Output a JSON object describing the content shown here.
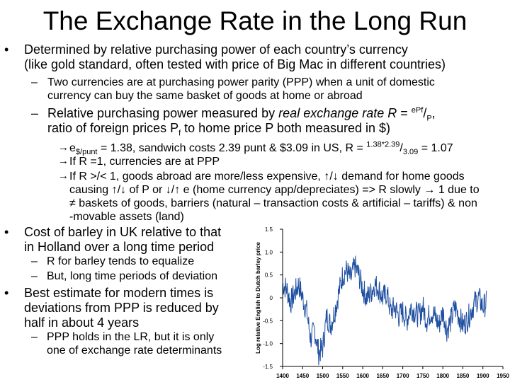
{
  "title": "The Exchange Rate in the Long Run",
  "bullets": [
    {
      "lines": [
        "Determined by relative purchasing power of each country’s currency",
        "(like gold standard, often tested with price of Big Mac in different countries)"
      ]
    }
  ],
  "sub1": {
    "lines": [
      "Two currencies are at purchasing power parity (PPP) when a unit of domestic",
      "currency can buy the same basket of goods at home or abroad"
    ]
  },
  "sub2": {
    "line1_pre": "Relative purchasing power measured by ",
    "line1_italic": "real exchange rate R",
    "line1_eq": " = ",
    "line1_sup": "ePf",
    "line1_slash": "/",
    "line1_sub": "P",
    "line1_end": ",",
    "line2": "ratio of foreign prices P",
    "line2_sub": "f",
    "line2_end": " to home price P both measured in $)"
  },
  "level3": [
    {
      "pre": "e",
      "sub": "$/punt",
      "mid": " = 1.38, sandwich costs 2.39 punt & $3.09 in US, R = ",
      "sup": "1.38*2.39",
      "slash": "/",
      "sub2": "3.09",
      "end": " = 1.07"
    },
    {
      "text": "If R =1, currencies are at PPP"
    },
    {
      "lines": [
        "If R >/< 1, goods abroad are more/less expensive, ↑/↓ demand for home goods",
        "causing ↑/↓ of P or ↓/↑ e (home currency app/depreciates) => R slowly → 1 due to",
        "≠ baskets of goods, barriers (natural – transaction costs & artificial – tariffs) & non",
        "-movable assets (land)"
      ]
    }
  ],
  "bullet2": {
    "lines": [
      "Cost of barley in UK relative to that",
      "in Holland over a long time period"
    ],
    "subs": [
      "R for barley tends to equalize",
      "But, long time periods of deviation"
    ]
  },
  "bullet3": {
    "lines": [
      "Best estimate for modern times is",
      "deviations from PPP is reduced by",
      "half in about 4 years"
    ],
    "subs": [
      "PPP holds in the LR, but it is only",
      "one of exchange rate determinants"
    ]
  },
  "chart_data": {
    "type": "line",
    "ylabel": "Log relative English to Dutch barley price",
    "ylim": [
      -1.5,
      1.5
    ],
    "xlim": [
      1400,
      1950
    ],
    "yticks": [
      "1.5",
      "1.0",
      "0.5",
      "0",
      "-0.5",
      "-1.0",
      "-1.5"
    ],
    "xticks": [
      "1400",
      "1450",
      "1500",
      "1550",
      "1600",
      "1650",
      "1700",
      "1750",
      "1800",
      "1850",
      "1900",
      "1950"
    ],
    "series": [
      {
        "x": [
          1400,
          1410,
          1420,
          1430,
          1440,
          1450,
          1460,
          1470,
          1480,
          1490,
          1500,
          1510,
          1520,
          1530,
          1540,
          1550,
          1560,
          1570,
          1580,
          1590,
          1600,
          1610,
          1620,
          1630,
          1640,
          1650,
          1660,
          1670,
          1680,
          1690,
          1700,
          1710,
          1720,
          1730,
          1740,
          1750,
          1760,
          1770,
          1780,
          1790,
          1800,
          1810,
          1820,
          1830,
          1840,
          1850,
          1860,
          1870,
          1880,
          1890,
          1900,
          1910
        ],
        "y": [
          0.3,
          0.2,
          -0.1,
          0.1,
          0.3,
          0.0,
          -0.3,
          -0.9,
          -0.7,
          -1.2,
          -1.1,
          -0.4,
          -0.6,
          -0.3,
          0.1,
          0.5,
          0.6,
          0.4,
          0.7,
          0.5,
          0.2,
          0.0,
          0.1,
          0.3,
          0.2,
          0.0,
          0.1,
          -0.3,
          -0.2,
          -0.4,
          -0.3,
          -0.5,
          -0.2,
          -0.3,
          -0.4,
          -0.2,
          -0.5,
          -0.3,
          -0.4,
          -0.6,
          -0.3,
          -0.7,
          -0.5,
          -0.2,
          -0.4,
          -0.6,
          -0.5,
          -0.3,
          -0.1,
          0.0,
          -0.2,
          -0.1
        ]
      }
    ]
  }
}
